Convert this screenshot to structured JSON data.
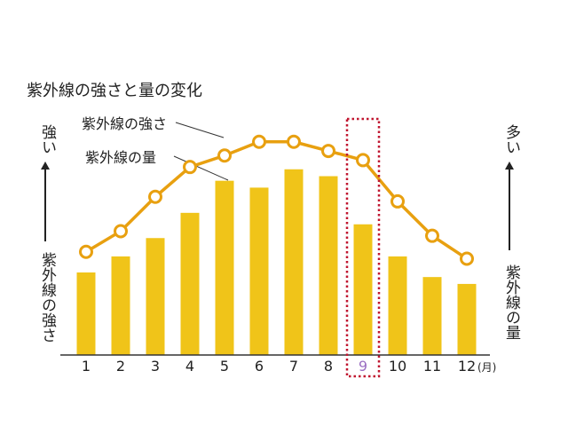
{
  "title": "紫外線の強さと量の変化",
  "left_axis": {
    "top": "強い",
    "bottom": "紫外線の強さ"
  },
  "right_axis": {
    "top": "多い",
    "bottom": "紫外線の量"
  },
  "unit_label": "(月)",
  "colors": {
    "bar": "#f0c419",
    "line": "#e8a010",
    "marker_fill": "#ffffff",
    "highlight": "#c0152f",
    "highlight_text": "#9b6fc2"
  },
  "chart_data": {
    "type": "bar+line",
    "categories": [
      "1",
      "2",
      "3",
      "4",
      "5",
      "6",
      "7",
      "8",
      "9",
      "10",
      "11",
      "12"
    ],
    "highlight_category": "9",
    "series": [
      {
        "name": "紫外線の量",
        "kind": "bar",
        "values": [
          3.6,
          4.3,
          5.1,
          6.2,
          7.6,
          7.3,
          8.1,
          7.8,
          5.7,
          4.3,
          3.4,
          3.1
        ]
      },
      {
        "name": "紫外線の強さ",
        "kind": "line",
        "values": [
          4.5,
          5.4,
          6.9,
          8.2,
          8.7,
          9.3,
          9.3,
          8.9,
          8.5,
          6.7,
          5.2,
          4.2
        ]
      }
    ],
    "ylim": [
      0,
      12
    ]
  }
}
